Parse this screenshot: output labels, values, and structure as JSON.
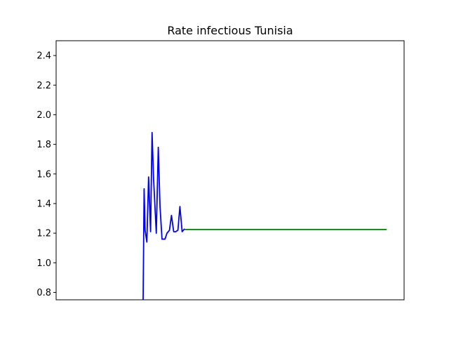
{
  "chart_data": {
    "type": "line",
    "title": "Rate infectious Tunisia",
    "xlabel": "",
    "ylabel": "",
    "xlim": [
      0,
      140
    ],
    "ylim": [
      0.75,
      2.5
    ],
    "yticks": [
      0.8,
      1.0,
      1.2,
      1.4,
      1.6,
      1.8,
      2.0,
      2.2,
      2.4
    ],
    "ytick_labels": [
      "0.8",
      "1.0",
      "1.2",
      "1.4",
      "1.6",
      "1.8",
      "2.0",
      "2.2",
      "2.4"
    ],
    "xticks_visible": false,
    "grid": false,
    "series": [
      {
        "color": "#0000ff",
        "x": [
          35.0,
          35.4,
          35.8,
          36.5,
          37.2,
          38.0,
          38.6,
          39.2,
          40.3,
          41.1,
          41.8,
          42.6,
          43.8,
          44.6,
          45.6,
          46.4,
          47.3,
          48.1,
          49.0,
          49.8,
          50.7,
          51.7
        ],
        "y": [
          0.75,
          1.5,
          1.22,
          1.14,
          1.58,
          1.21,
          1.88,
          1.57,
          1.2,
          1.78,
          1.38,
          1.16,
          1.16,
          1.2,
          1.22,
          1.32,
          1.21,
          1.21,
          1.22,
          1.38,
          1.21,
          1.23
        ]
      },
      {
        "color": "#008000",
        "x": [
          51.7,
          133.0
        ],
        "y": [
          1.225,
          1.225
        ]
      }
    ]
  }
}
